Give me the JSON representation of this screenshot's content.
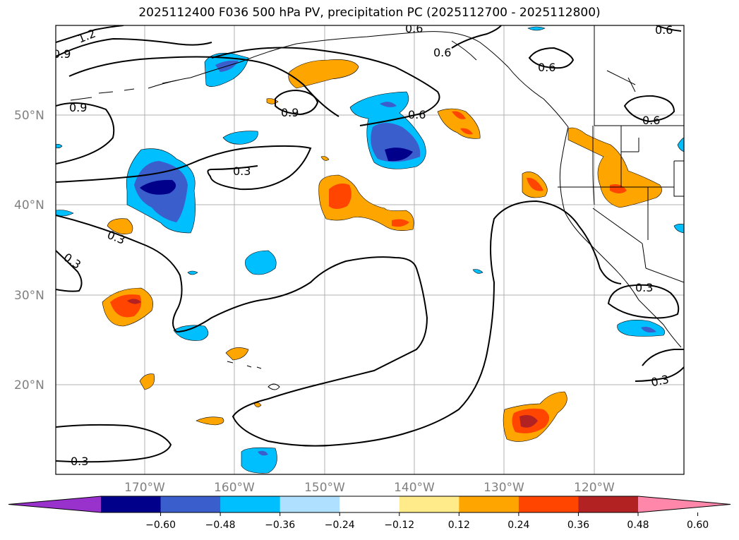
{
  "title": "2025112400 F036 500 hPa PV, precipitation PC (2025112700 - 2025112800)",
  "latitude_labels": [
    "50°N",
    "40°N",
    "30°N",
    "20°N"
  ],
  "longitude_labels": [
    "170°W",
    "160°W",
    "150°W",
    "140°W",
    "130°W",
    "120°W"
  ],
  "contour_labels": {
    "c12": "1.2",
    "c09a": "0.9",
    "c09b": "0.9",
    "c09c": "0.9",
    "c06a": "0.6",
    "c06b": "0.6",
    "c06c": "0.6",
    "c06d": "0.6",
    "c06e": "0.6",
    "c06f": "0.6",
    "c03a": "0.3",
    "c03b": "0.3",
    "c03c": "0.3",
    "c03d": "0.3",
    "c03e": "0.3",
    "c03f": "0.3"
  },
  "colorbar": {
    "ticks": [
      "−0.60",
      "−0.48",
      "−0.36",
      "−0.24",
      "−0.12",
      "0.12",
      "0.24",
      "0.36",
      "0.48",
      "0.60"
    ],
    "colors": [
      "#9932cc",
      "#00008b",
      "#3a5fcd",
      "#00bfff",
      "#b0e0ff",
      "#ffffff",
      "#ffeb8a",
      "#ffa500",
      "#ff4500",
      "#b22222",
      "#ff88aa"
    ]
  },
  "colors": {
    "neg_1": "#00bfff",
    "neg_2": "#3a5fcd",
    "neg_3": "#00008b",
    "pos_1": "#ffa500",
    "pos_2": "#ff4500",
    "pos_3": "#b22222"
  }
}
